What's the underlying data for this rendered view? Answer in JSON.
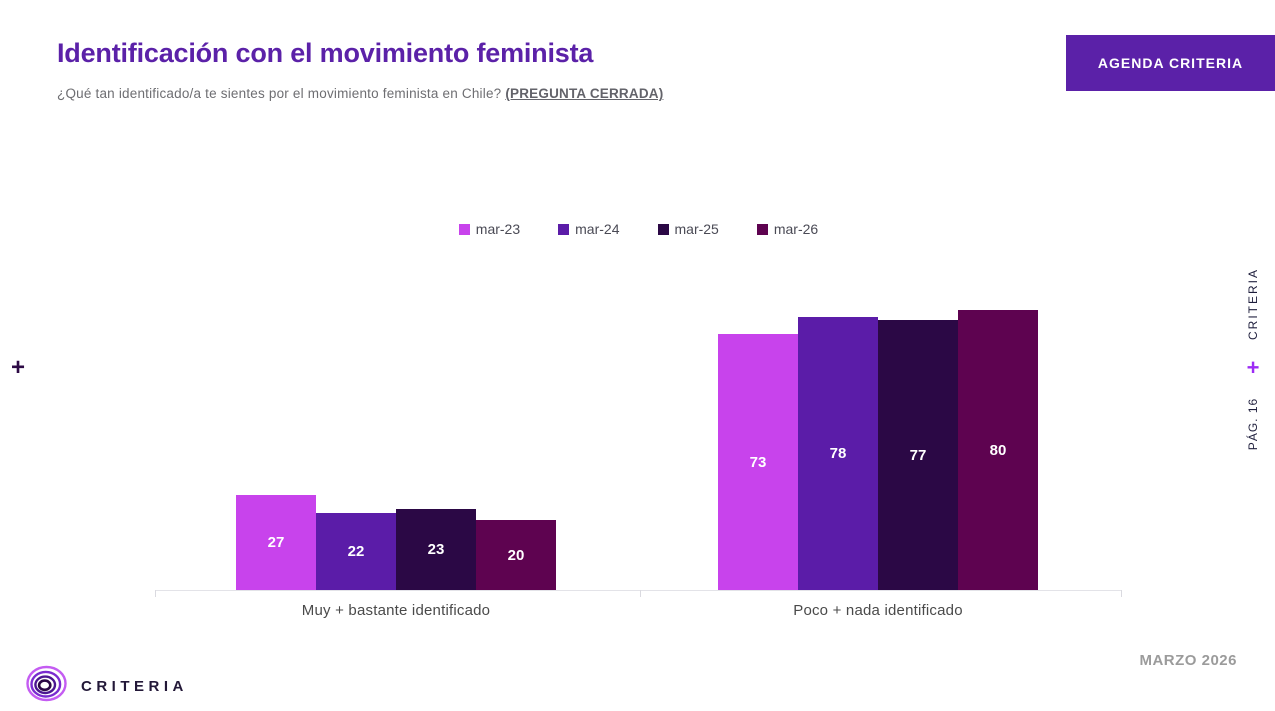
{
  "header": {
    "title": "Identificación con el movimiento feminista",
    "subtitle_question": "¿Qué tan identificado/a te sientes por el movimiento feminista en Chile? ",
    "subtitle_tag": "(PREGUNTA CERRADA)",
    "agenda_button_label": "AGENDA CRITERIA"
  },
  "side": {
    "left_plus": "+",
    "right_brand": "CRITERIA",
    "right_plus": "+",
    "right_page": "PÁG. 16"
  },
  "chart_data": {
    "type": "bar",
    "categories": [
      "Muy + bastante identificado",
      "Poco + nada identificado"
    ],
    "series": [
      {
        "name": "mar-23",
        "color": "#C843EC",
        "values": [
          27,
          73
        ]
      },
      {
        "name": "mar-24",
        "color": "#5B1CA8",
        "values": [
          22,
          78
        ]
      },
      {
        "name": "mar-25",
        "color": "#2B0845",
        "values": [
          23,
          77
        ]
      },
      {
        "name": "mar-26",
        "color": "#5E0350",
        "values": [
          20,
          80
        ]
      }
    ],
    "ylim": [
      0,
      100
    ],
    "legend_position": "top-center",
    "grid": false,
    "value_labels": "inside-white"
  },
  "footer": {
    "logo_text": "CRITERIA",
    "date_label": "MARZO 2026"
  },
  "colors": {
    "accent_purple": "#5B21A8",
    "axis_line": "#E3E3E8",
    "subtitle_gray": "#6E6E72",
    "date_gray": "#9B9B9B"
  }
}
